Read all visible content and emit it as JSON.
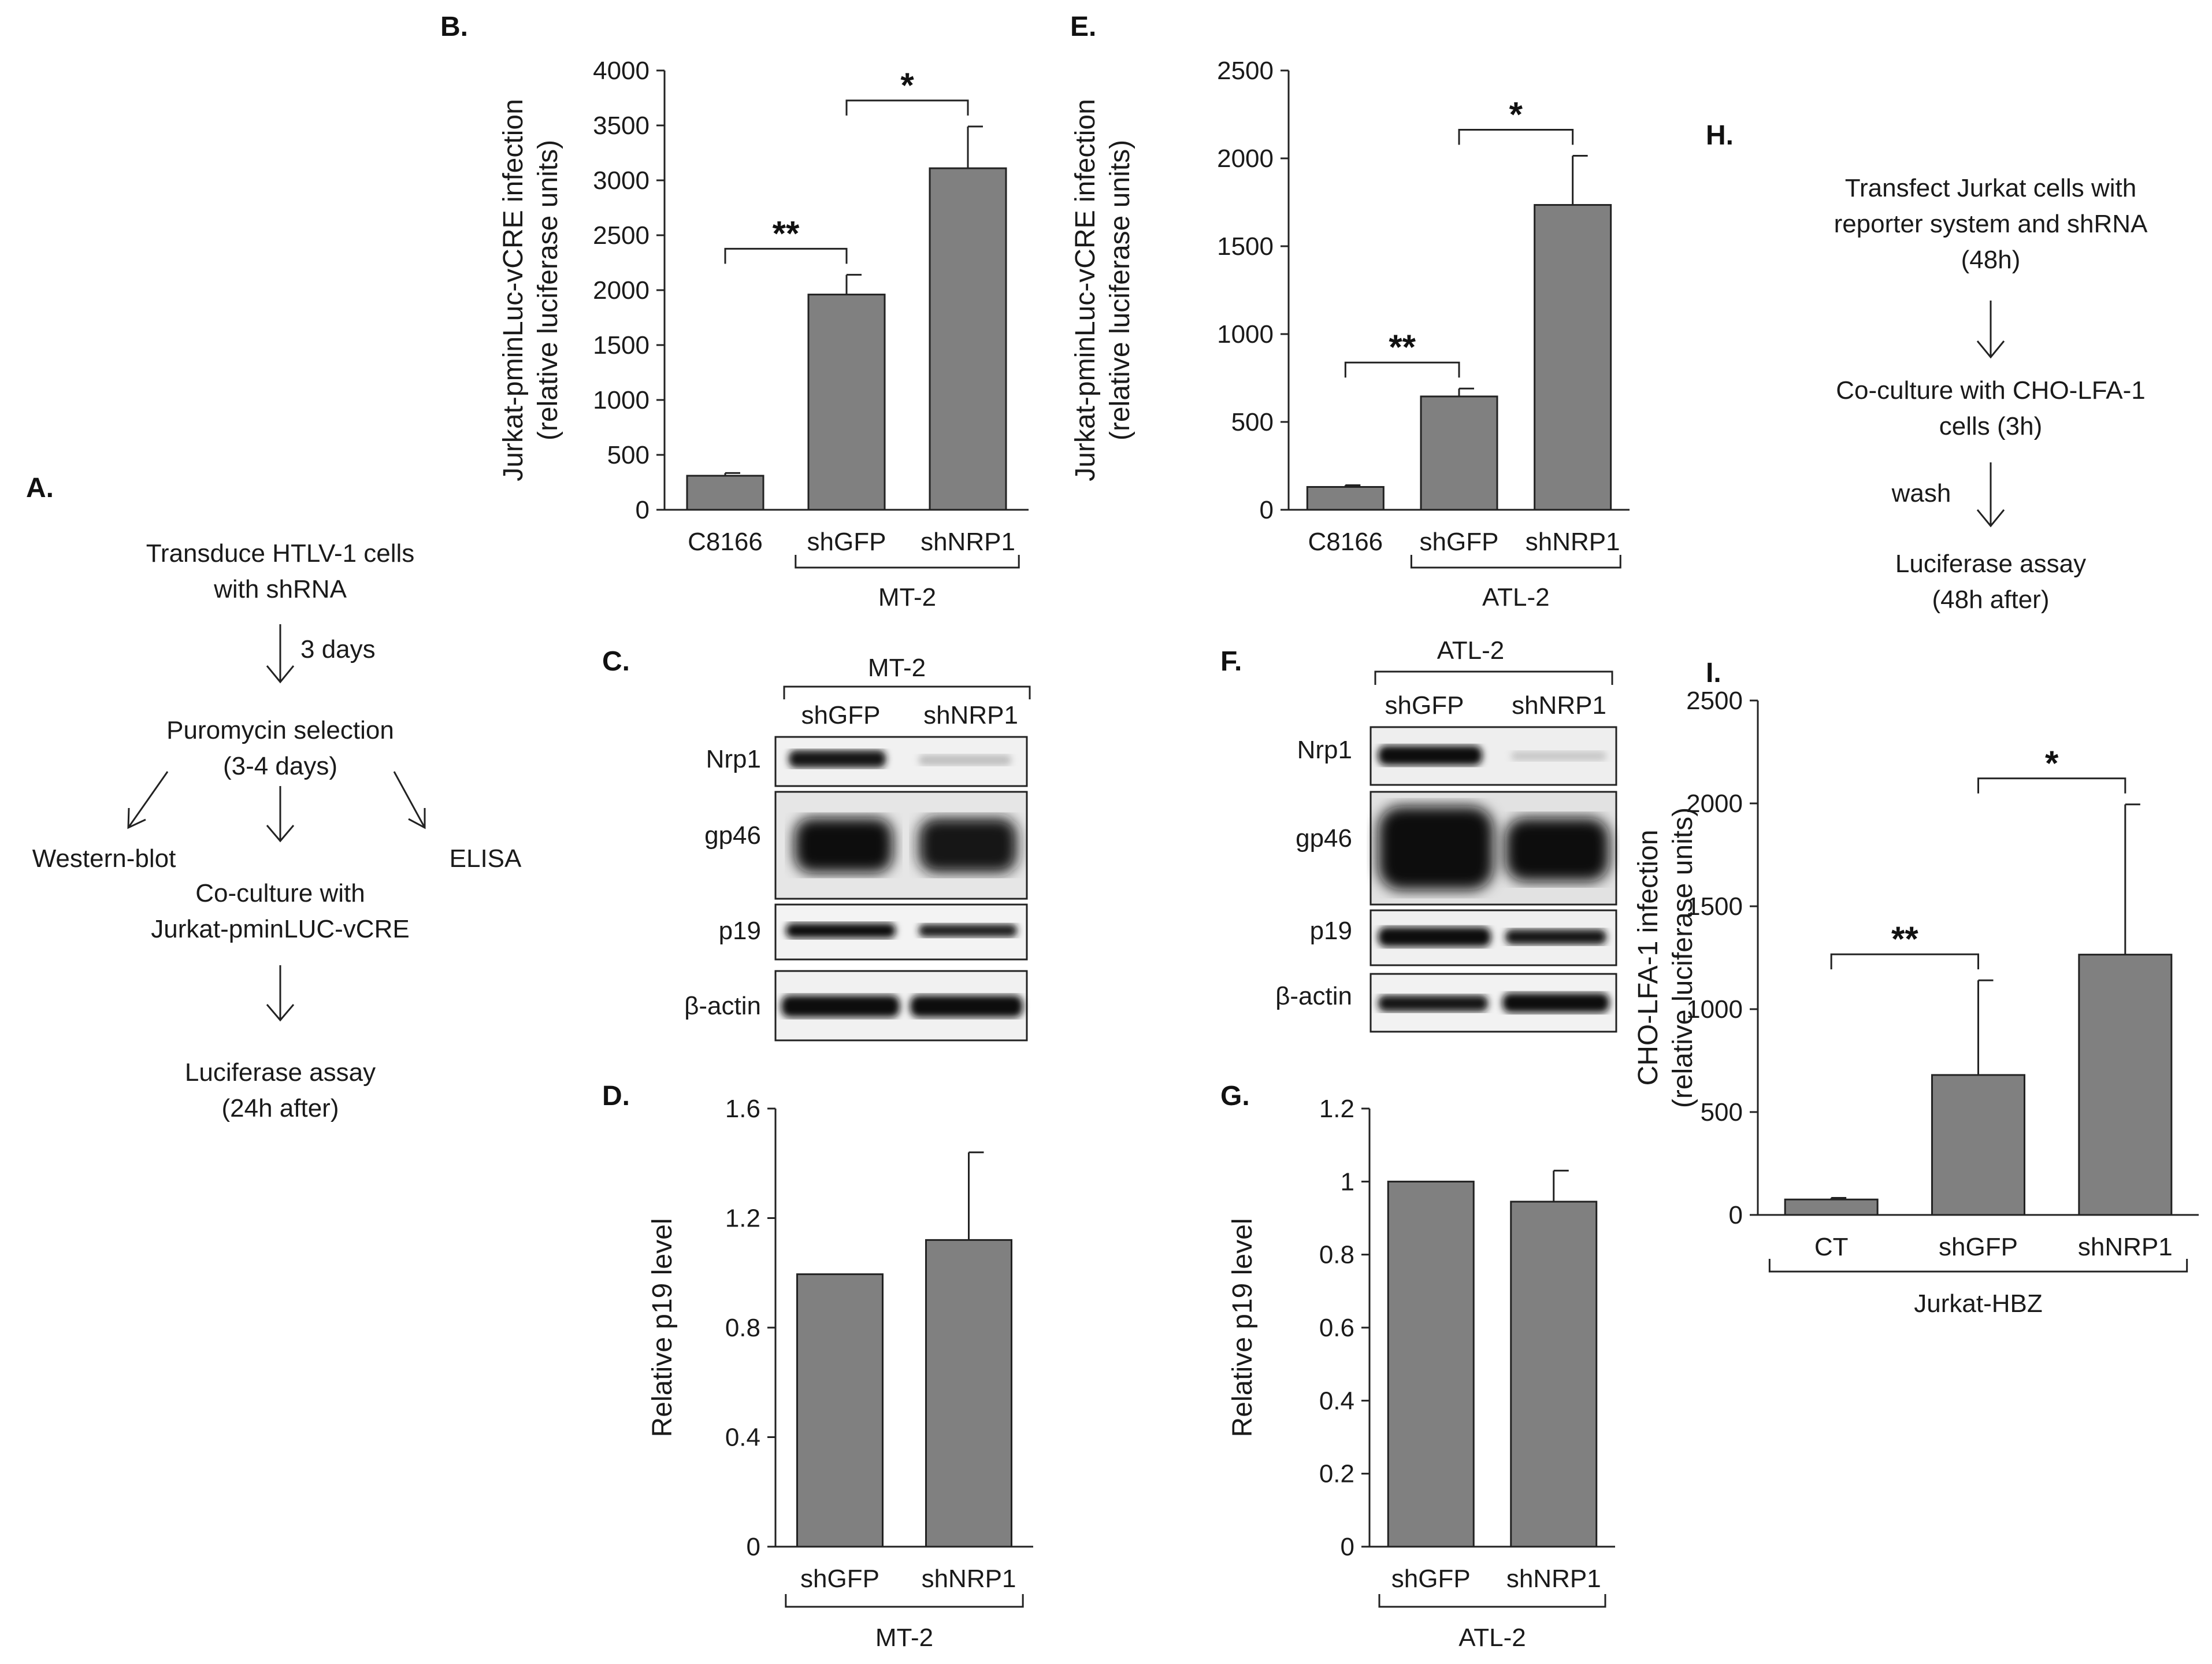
{
  "panels": {
    "A": {
      "label": "A."
    },
    "B": {
      "label": "B."
    },
    "C": {
      "label": "C."
    },
    "D": {
      "label": "D."
    },
    "E": {
      "label": "E."
    },
    "F": {
      "label": "F."
    },
    "G": {
      "label": "G."
    },
    "H": {
      "label": "H."
    },
    "I": {
      "label": "I."
    }
  },
  "flow_a": {
    "step1": [
      "Transduce HTLV-1 cells",
      "with shRNA"
    ],
    "arrow1_label": "3 days",
    "step2": [
      "Puromycin selection",
      "(3-4 days)"
    ],
    "left": "Western-blot",
    "right": "ELISA",
    "step3": [
      "Co-culture with",
      "Jurkat-pminLUC-vCRE"
    ],
    "step4": [
      "Luciferase assay",
      "(24h after)"
    ]
  },
  "flow_h": {
    "step1": [
      "Transfect Jurkat cells with",
      "reporter system and shRNA",
      "(48h)"
    ],
    "step2": [
      "Co-culture with CHO-LFA-1",
      "cells (3h)"
    ],
    "wash": "wash",
    "step3": [
      "Luciferase assay",
      "(48h after)"
    ]
  },
  "blot_c": {
    "group": "MT-2",
    "lanes": [
      "shGFP",
      "shNRP1"
    ],
    "rows": [
      "Nrp1",
      "gp46",
      "p19",
      "β-actin"
    ]
  },
  "blot_f": {
    "group": "ATL-2",
    "lanes": [
      "shGFP",
      "shNRP1"
    ],
    "rows": [
      "Nrp1",
      "gp46",
      "p19",
      "β-actin"
    ]
  },
  "chart_data": [
    {
      "panel": "B",
      "type": "bar",
      "categories": [
        "C8166",
        "shGFP",
        "shNRP1"
      ],
      "values": [
        310,
        1960,
        3110
      ],
      "errors": [
        25,
        180,
        380
      ],
      "ylabel": [
        "Jurkat-pminLuc-vCRE infection",
        "(relative luciferase units)"
      ],
      "ylim": [
        0,
        4000
      ],
      "yticks": [
        0,
        500,
        1000,
        1500,
        2000,
        2500,
        3000,
        3500,
        4000
      ],
      "group_label": "MT-2",
      "group_span": [
        1,
        2
      ],
      "significance": [
        {
          "from": 0,
          "to": 1,
          "label": "**"
        },
        {
          "from": 1,
          "to": 2,
          "label": "*"
        }
      ]
    },
    {
      "panel": "E",
      "type": "bar",
      "categories": [
        "C8166",
        "shGFP",
        "shNRP1"
      ],
      "values": [
        130,
        645,
        1735
      ],
      "errors": [
        10,
        45,
        280
      ],
      "ylabel": [
        "Jurkat-pminLuc-vCRE infection",
        "(relative luciferase units)"
      ],
      "ylim": [
        0,
        2500
      ],
      "yticks": [
        0,
        500,
        1000,
        1500,
        2000,
        2500
      ],
      "group_label": "ATL-2",
      "group_span": [
        1,
        2
      ],
      "significance": [
        {
          "from": 0,
          "to": 1,
          "label": "**"
        },
        {
          "from": 1,
          "to": 2,
          "label": "*"
        }
      ]
    },
    {
      "panel": "D",
      "type": "bar",
      "categories": [
        "shGFP",
        "shNRP1"
      ],
      "values": [
        0.995,
        1.12
      ],
      "errors": [
        0,
        0.32
      ],
      "ylabel": [
        "Relative p19 level"
      ],
      "ylim": [
        0,
        1.6
      ],
      "yticks": [
        "0",
        "0.4",
        "0.8",
        "1.2",
        "1.6"
      ],
      "group_label": "MT-2",
      "group_span": [
        0,
        1
      ],
      "significance": []
    },
    {
      "panel": "G",
      "type": "bar",
      "categories": [
        "shGFP",
        "shNRP1"
      ],
      "values": [
        1.0,
        0.945
      ],
      "errors": [
        0,
        0.085
      ],
      "ylabel": [
        "Relative p19 level"
      ],
      "ylim": [
        0,
        1.2
      ],
      "yticks": [
        "0",
        "0.2",
        "0.4",
        "0.6",
        "0.8",
        "1",
        "1.2"
      ],
      "group_label": "ATL-2",
      "group_span": [
        0,
        1
      ],
      "significance": []
    },
    {
      "panel": "I",
      "type": "bar",
      "categories": [
        "CT",
        "shGFP",
        "shNRP1"
      ],
      "values": [
        75,
        680,
        1265
      ],
      "errors": [
        8,
        460,
        730
      ],
      "ylabel": [
        "CHO-LFA-1 infection",
        "(relative luciferase units)"
      ],
      "ylim": [
        0,
        2500
      ],
      "yticks": [
        0,
        500,
        1000,
        1500,
        2000,
        2500
      ],
      "group_label": "Jurkat-HBZ",
      "group_span": [
        0,
        2
      ],
      "significance": [
        {
          "from": 0,
          "to": 1,
          "label": "**"
        },
        {
          "from": 1,
          "to": 2,
          "label": "*"
        }
      ]
    }
  ]
}
